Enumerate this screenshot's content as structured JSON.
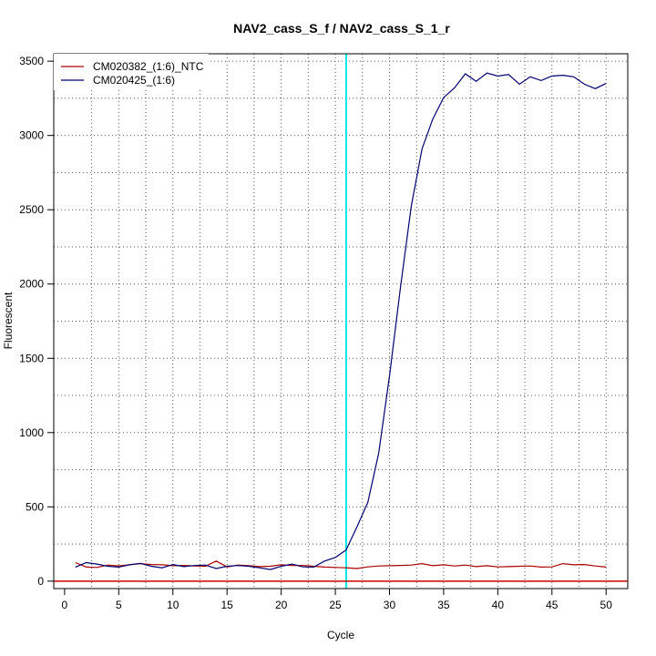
{
  "chart_data": {
    "type": "line",
    "title": "NAV2_cass_S_f / NAV2_cass_S_1_r",
    "xlabel": "Cycle",
    "ylabel": "Fluorescent",
    "xlim": [
      -1,
      52
    ],
    "ylim": [
      -50,
      3550
    ],
    "x_ticks": [
      0,
      5,
      10,
      15,
      20,
      25,
      30,
      35,
      40,
      45,
      50
    ],
    "y_ticks": [
      0,
      500,
      1000,
      1500,
      2000,
      2500,
      3000,
      3500
    ],
    "grid": true,
    "legend": "top-left",
    "threshold_cycle": 26,
    "threshold_color": "#00e5e5",
    "baseline_value": 0,
    "baseline_color": "#cc0000",
    "series": [
      {
        "name": "CM020382_(1:6)_NTC",
        "color": "#aa0000",
        "x": [
          1,
          2,
          3,
          4,
          5,
          6,
          7,
          8,
          9,
          10,
          11,
          12,
          13,
          14,
          15,
          16,
          17,
          18,
          19,
          20,
          21,
          22,
          23,
          24,
          25,
          26,
          27,
          28,
          29,
          30,
          31,
          32,
          33,
          34,
          35,
          36,
          37,
          38,
          39,
          40,
          41,
          42,
          43,
          44,
          45,
          46,
          47,
          48,
          49,
          50
        ],
        "values": [
          125,
          95,
          92,
          108,
          103,
          110,
          118,
          112,
          110,
          104,
          106,
          103,
          100,
          135,
          96,
          108,
          104,
          98,
          100,
          110,
          105,
          106,
          100,
          95,
          92,
          90,
          85,
          96,
          102,
          104,
          106,
          108,
          118,
          104,
          110,
          102,
          108,
          98,
          104,
          96,
          98,
          100,
          102,
          95,
          96,
          118,
          110,
          112,
          102,
          95
        ]
      },
      {
        "name": "CM020425_(1:6)",
        "color": "#000070",
        "x": [
          1,
          2,
          3,
          4,
          5,
          6,
          7,
          8,
          9,
          10,
          11,
          12,
          13,
          14,
          15,
          16,
          17,
          18,
          19,
          20,
          21,
          22,
          23,
          24,
          25,
          26,
          27,
          28,
          29,
          30,
          31,
          32,
          33,
          34,
          35,
          36,
          37,
          38,
          39,
          40,
          41,
          42,
          43,
          44,
          45,
          46,
          47,
          48,
          49,
          50
        ],
        "values": [
          95,
          125,
          115,
          100,
          95,
          110,
          120,
          100,
          90,
          112,
          98,
          105,
          108,
          85,
          100,
          105,
          100,
          90,
          78,
          100,
          115,
          96,
          95,
          135,
          160,
          210,
          365,
          530,
          860,
          1380,
          1970,
          2520,
          2910,
          3110,
          3255,
          3320,
          3415,
          3365,
          3420,
          3400,
          3410,
          3345,
          3395,
          3370,
          3400,
          3405,
          3395,
          3345,
          3315,
          3350
        ]
      }
    ]
  }
}
